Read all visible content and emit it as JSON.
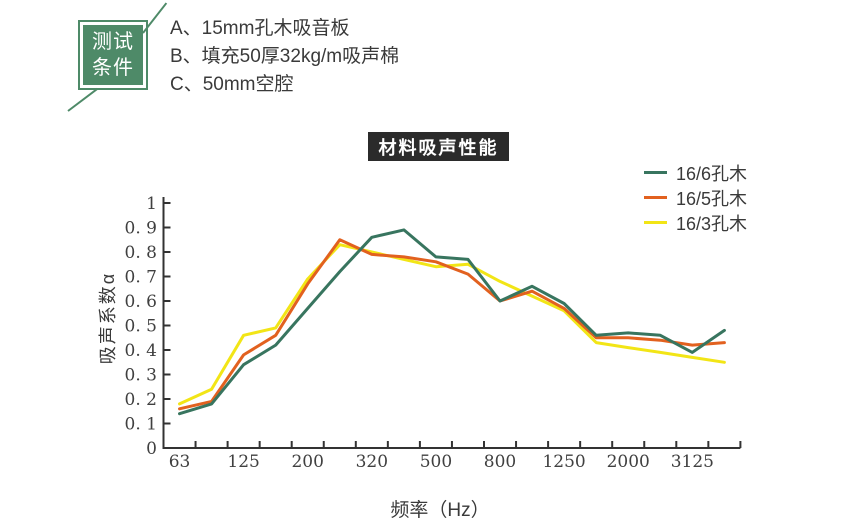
{
  "test_conditions": {
    "badge": {
      "line1": "测试",
      "line2": "条件",
      "color": "#4e8a68"
    },
    "items": [
      "A、15mm孔木吸音板",
      "B、填充50厚32kg/m吸声棉",
      "C、50mm空腔"
    ]
  },
  "chart_title": {
    "text": "材料吸声性能",
    "bg": "#2b2b2b",
    "fg": "#ffffff"
  },
  "chart_data": {
    "type": "line",
    "title": "材料吸声性能",
    "xlabel": "频率（Hz）",
    "ylabel": "吸声系数α",
    "grid": false,
    "legend_position": "top-right",
    "n_points": 18,
    "x_axis": {
      "n_bands": 18,
      "labeled_band_indices": [
        0,
        2,
        4,
        6,
        8,
        10,
        12,
        14,
        16
      ],
      "tick_labels": [
        "63",
        "125",
        "200",
        "320",
        "500",
        "800",
        "1250",
        "2000",
        "3125"
      ]
    },
    "y_axis": {
      "min": 0,
      "max": 1,
      "step": 0.1,
      "tick_labels": [
        "0",
        "0. 1",
        "0. 2",
        "0. 3",
        "0. 4",
        "0. 5",
        "0. 6",
        "0. 7",
        "0. 8",
        "0. 9",
        "1"
      ]
    },
    "series": [
      {
        "name": "16/6孔木",
        "color": "#38755f",
        "values": [
          0.14,
          0.18,
          0.34,
          0.42,
          0.57,
          0.72,
          0.86,
          0.89,
          0.78,
          0.77,
          0.6,
          0.66,
          0.59,
          0.46,
          0.47,
          0.46,
          0.39,
          0.48
        ]
      },
      {
        "name": "16/5孔木",
        "color": "#e2611f",
        "values": [
          0.16,
          0.19,
          0.38,
          0.46,
          0.67,
          0.85,
          0.79,
          0.78,
          0.76,
          0.71,
          0.6,
          0.64,
          0.57,
          0.45,
          0.45,
          0.44,
          0.42,
          0.43
        ]
      },
      {
        "name": "16/3孔木",
        "color": "#f2e516",
        "values": [
          0.18,
          0.24,
          0.46,
          0.49,
          0.69,
          0.83,
          0.8,
          0.77,
          0.74,
          0.75,
          0.68,
          0.62,
          0.56,
          0.43,
          0.41,
          0.39,
          0.37,
          0.35
        ]
      }
    ],
    "axis_color": "#333333",
    "tick_label_color": "#404040"
  }
}
